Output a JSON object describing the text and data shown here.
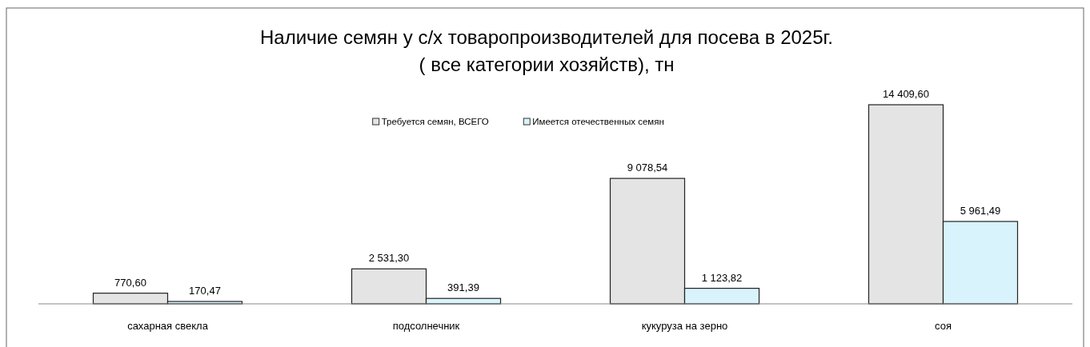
{
  "chart_data": {
    "type": "bar",
    "title": "Наличие семян у с/х товаропроизводителей для посева в 2025г.\n( все категории хозяйств), тн",
    "categories": [
      "сахарная свекла",
      "подсолнечник",
      "кукуруза на зерно",
      "соя"
    ],
    "legend": "top",
    "series": [
      {
        "name": "Требуется семян, ВСЕГО",
        "color": "#e4e4e4",
        "values": [
          770.6,
          2531.3,
          9078.54,
          14409.6
        ],
        "value_labels": [
          "770,60",
          "2 531,30",
          "9 078,54",
          "14 409,60"
        ]
      },
      {
        "name": "Имеется отечественных семян",
        "color": "#d8f3fb",
        "values": [
          170.47,
          391.39,
          1123.82,
          5961.49
        ],
        "value_labels": [
          "170,47",
          "391,39",
          "1 123,82",
          "5 961,49"
        ]
      }
    ]
  }
}
